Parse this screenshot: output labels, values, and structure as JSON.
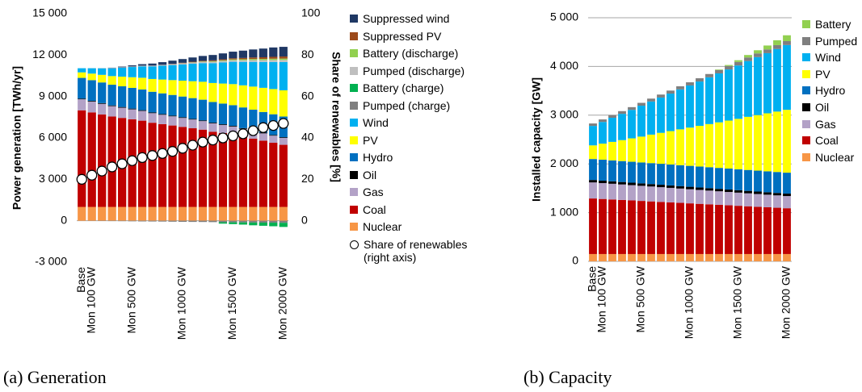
{
  "chart_data": [
    {
      "type": "bar",
      "stacked": true,
      "caption": "(a) Generation",
      "ylabel": "Power generation [TWh/yr]",
      "y2label": "Share of renewables [%]",
      "categories": [
        "Base",
        "Mon 100 GW",
        null,
        null,
        null,
        "Mon 500 GW",
        null,
        null,
        null,
        null,
        "Mon 1000 GW",
        null,
        null,
        null,
        null,
        "Mon 1500 GW",
        null,
        null,
        null,
        null,
        "Mon 2000 GW"
      ],
      "ylim": [
        -3000,
        15000
      ],
      "yticks": [
        {
          "value": -3000,
          "label": "-3 000"
        },
        0,
        {
          "value": 3000,
          "label": "3 000"
        },
        {
          "value": 6000,
          "label": "6 000"
        },
        {
          "value": 9000,
          "label": "9 000"
        },
        {
          "value": 12000,
          "label": "12 000"
        },
        {
          "value": 15000,
          "label": "15 000"
        }
      ],
      "y2lim": [
        0,
        100
      ],
      "y2ticks": [
        0,
        20,
        40,
        60,
        80,
        100
      ],
      "grid": false,
      "series": [
        {
          "name": "Nuclear",
          "color": "#f79646",
          "values": [
            1000,
            1000,
            1000,
            1000,
            1000,
            1000,
            1000,
            1000,
            1000,
            1000,
            1000,
            1000,
            1000,
            1000,
            1000,
            1000,
            1000,
            1000,
            1000,
            1000,
            1000
          ]
        },
        {
          "name": "Coal",
          "color": "#c00000",
          "values": [
            7000,
            6850,
            6700,
            6550,
            6450,
            6350,
            6250,
            6100,
            6000,
            5900,
            5800,
            5700,
            5600,
            5450,
            5350,
            5250,
            5100,
            4950,
            4800,
            4650,
            4500
          ]
        },
        {
          "name": "Gas",
          "color": "#b3a2c7",
          "values": [
            800,
            785,
            770,
            755,
            740,
            725,
            710,
            695,
            680,
            665,
            650,
            635,
            620,
            605,
            590,
            575,
            560,
            545,
            530,
            515,
            500
          ]
        },
        {
          "name": "Oil",
          "color": "#000000",
          "values": [
            50,
            50,
            50,
            50,
            50,
            50,
            50,
            50,
            50,
            50,
            50,
            50,
            50,
            50,
            50,
            50,
            50,
            50,
            50,
            50,
            50
          ]
        },
        {
          "name": "Hydro",
          "color": "#0070c0",
          "values": [
            1500,
            1500,
            1500,
            1500,
            1500,
            1500,
            1500,
            1500,
            1500,
            1500,
            1500,
            1500,
            1500,
            1500,
            1500,
            1500,
            1500,
            1500,
            1500,
            1500,
            1500
          ]
        },
        {
          "name": "PV",
          "color": "#ffff00",
          "values": [
            400,
            475,
            550,
            625,
            700,
            775,
            850,
            925,
            1000,
            1075,
            1150,
            1225,
            1300,
            1375,
            1450,
            1525,
            1600,
            1675,
            1750,
            1825,
            1900
          ]
        },
        {
          "name": "Wind",
          "color": "#00b0f0",
          "values": [
            300,
            390,
            475,
            565,
            650,
            740,
            825,
            915,
            1000,
            1090,
            1175,
            1265,
            1350,
            1440,
            1525,
            1615,
            1700,
            1790,
            1875,
            1965,
            2050
          ]
        },
        {
          "name": "Pumped (charge)",
          "color": "#7f7f7f",
          "values": [
            0,
            -10,
            -20,
            -25,
            -30,
            -40,
            -50,
            -55,
            -60,
            -70,
            -80,
            -85,
            -90,
            -100,
            -110,
            -115,
            -120,
            -130,
            -135,
            -140,
            -150
          ]
        },
        {
          "name": "Battery (charge)",
          "color": "#00b050",
          "values": [
            0,
            0,
            0,
            0,
            0,
            0,
            0,
            0,
            0,
            0,
            0,
            0,
            0,
            0,
            -100,
            -130,
            -160,
            -200,
            -230,
            -260,
            -300
          ]
        },
        {
          "name": "Pumped (discharge)",
          "color": "#bfbfbf",
          "values": [
            0,
            10,
            20,
            25,
            30,
            40,
            50,
            55,
            60,
            70,
            80,
            85,
            90,
            100,
            110,
            115,
            120,
            130,
            135,
            140,
            150
          ]
        },
        {
          "name": "Battery (discharge)",
          "color": "#92d050",
          "values": [
            0,
            0,
            0,
            0,
            0,
            0,
            0,
            0,
            0,
            0,
            10,
            20,
            30,
            40,
            50,
            60,
            70,
            80,
            85,
            95,
            100
          ]
        },
        {
          "name": "Suppressed PV",
          "color": "#9c4a1a",
          "values": [
            0,
            0,
            0,
            0,
            0,
            0,
            0,
            0,
            10,
            20,
            30,
            40,
            50,
            60,
            70,
            80,
            95,
            110,
            120,
            135,
            150
          ]
        },
        {
          "name": "Suppressed wind",
          "color": "#1f3864",
          "values": [
            0,
            0,
            0,
            20,
            50,
            80,
            110,
            150,
            190,
            230,
            270,
            310,
            350,
            390,
            430,
            480,
            530,
            580,
            630,
            680,
            700
          ]
        },
        {
          "name": "Share of renewables (right axis)",
          "color": "#000000",
          "axis": "y2",
          "marker": "circle",
          "values": [
            20,
            22,
            24,
            26,
            27.5,
            29,
            30.5,
            31.5,
            32.5,
            33.5,
            35,
            36.5,
            38,
            39,
            40,
            41,
            42,
            43.5,
            45,
            46,
            47
          ]
        }
      ]
    },
    {
      "type": "bar",
      "stacked": true,
      "caption": "(b) Capacity",
      "ylabel": "Installed capacity [GW]",
      "categories": [
        "Base",
        "Mon 100 GW",
        null,
        null,
        null,
        "Mon 500 GW",
        null,
        null,
        null,
        null,
        "Mon 1000 GW",
        null,
        null,
        null,
        null,
        "Mon 1500 GW",
        null,
        null,
        null,
        null,
        "Mon 2000 GW"
      ],
      "ylim": [
        0,
        5000
      ],
      "yticks": [
        0,
        {
          "value": 1000,
          "label": "1 000"
        },
        {
          "value": 2000,
          "label": "2 000"
        },
        {
          "value": 3000,
          "label": "3 000"
        },
        {
          "value": 4000,
          "label": "4 000"
        },
        {
          "value": 5000,
          "label": "5 000"
        }
      ],
      "grid": true,
      "series": [
        {
          "name": "Nuclear",
          "color": "#f79646",
          "values": [
            150,
            150,
            150,
            150,
            150,
            150,
            150,
            150,
            150,
            150,
            150,
            150,
            150,
            150,
            150,
            150,
            150,
            150,
            150,
            150,
            150
          ]
        },
        {
          "name": "Coal",
          "color": "#c00000",
          "values": [
            1140,
            1130,
            1120,
            1110,
            1100,
            1090,
            1080,
            1070,
            1060,
            1050,
            1040,
            1030,
            1020,
            1010,
            1000,
            990,
            980,
            970,
            960,
            950,
            940
          ]
        },
        {
          "name": "Gas",
          "color": "#b3a2c7",
          "values": [
            330,
            326,
            322,
            318,
            314,
            310,
            306,
            302,
            298,
            294,
            290,
            286,
            282,
            278,
            274,
            270,
            266,
            262,
            258,
            254,
            250
          ]
        },
        {
          "name": "Oil",
          "color": "#000000",
          "values": [
            50,
            50,
            50,
            50,
            50,
            50,
            50,
            50,
            50,
            50,
            50,
            50,
            50,
            50,
            50,
            50,
            50,
            50,
            50,
            50,
            50
          ]
        },
        {
          "name": "Hydro",
          "color": "#0070c0",
          "values": [
            430,
            430,
            430,
            430,
            430,
            430,
            430,
            430,
            430,
            430,
            430,
            430,
            430,
            430,
            430,
            430,
            430,
            430,
            430,
            430,
            430
          ]
        },
        {
          "name": "PV",
          "color": "#ffff00",
          "values": [
            280,
            330,
            380,
            430,
            480,
            530,
            585,
            635,
            685,
            735,
            785,
            835,
            885,
            935,
            985,
            1035,
            1090,
            1140,
            1190,
            1240,
            1290
          ]
        },
        {
          "name": "Wind",
          "color": "#00b0f0",
          "values": [
            400,
            445,
            495,
            540,
            585,
            635,
            680,
            725,
            770,
            820,
            865,
            910,
            960,
            1005,
            1050,
            1095,
            1145,
            1190,
            1235,
            1285,
            1330
          ]
        },
        {
          "name": "Pumped",
          "color": "#7f7f7f",
          "values": [
            50,
            52,
            53,
            55,
            56,
            58,
            59,
            61,
            62,
            64,
            65,
            67,
            68,
            70,
            71,
            73,
            74,
            76,
            77,
            79,
            80
          ]
        },
        {
          "name": "Battery",
          "color": "#92d050",
          "values": [
            0,
            0,
            0,
            0,
            0,
            0,
            0,
            0,
            0,
            0,
            0,
            0,
            0,
            10,
            20,
            35,
            50,
            65,
            80,
            100,
            120
          ]
        }
      ]
    }
  ]
}
